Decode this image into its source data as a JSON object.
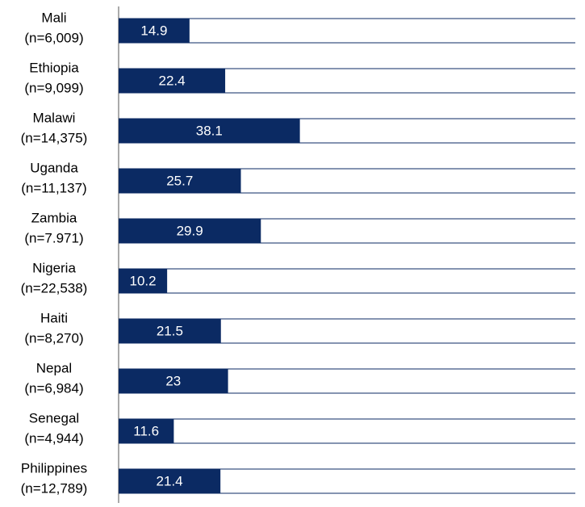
{
  "chart_data": {
    "type": "hbar",
    "categories": [
      "Mali",
      "Ethiopia",
      "Malawi",
      "Uganda",
      "Zambia",
      "Nigeria",
      "Haiti",
      "Nepal",
      "Senegal",
      "Philippines"
    ],
    "category_notes": [
      "(n=6,009)",
      "(n=9,099)",
      "(n=14,375)",
      "(n=11,137)",
      "(n=7.971)",
      "(n=22,538)",
      "(n=8,270)",
      "(n=6,984)",
      "(n=4,944)",
      "(n=12,789)"
    ],
    "values": [
      14.9,
      22.4,
      38.1,
      25.7,
      29.9,
      10.2,
      21.5,
      23,
      11.6,
      21.4
    ],
    "color": "#0b2a63",
    "xlim": [
      0,
      96
    ]
  }
}
